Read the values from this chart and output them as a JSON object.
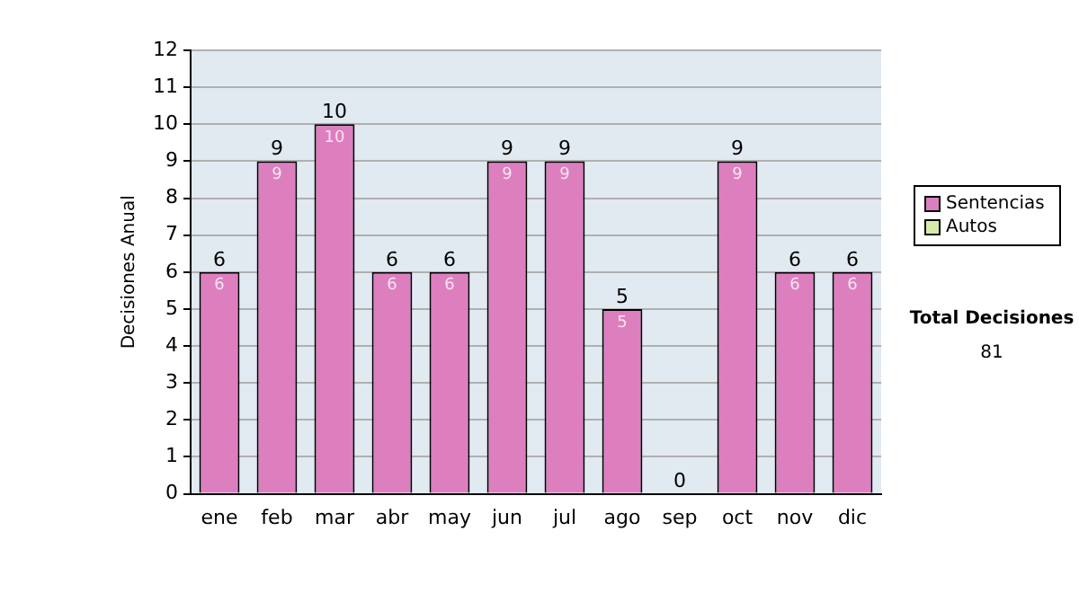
{
  "chart_data": {
    "type": "bar",
    "stacked": true,
    "ylabel": "Decisiones Anual",
    "categories": [
      "ene",
      "feb",
      "mar",
      "abr",
      "may",
      "jun",
      "jul",
      "ago",
      "sep",
      "oct",
      "nov",
      "dic"
    ],
    "series": [
      {
        "name": "Sentencias",
        "color": "#dd7fbf",
        "values": [
          6,
          9,
          10,
          6,
          6,
          9,
          9,
          5,
          0,
          9,
          6,
          6
        ],
        "value_labels": [
          "6",
          "9",
          "10",
          "6",
          "6",
          "9",
          "9",
          "5",
          null,
          "9",
          "6",
          "6"
        ]
      },
      {
        "name": "Autos",
        "color": "#d7eba6",
        "values": [
          0,
          0,
          0,
          0,
          0,
          0,
          0,
          0,
          0,
          0,
          0,
          0
        ]
      }
    ],
    "totals": [
      "6",
      "9",
      "10",
      "6",
      "6",
      "9",
      "9",
      "5",
      "0",
      "9",
      "6",
      "6"
    ],
    "ylim": [
      0,
      12
    ],
    "yticks": [
      0,
      1,
      2,
      3,
      4,
      5,
      6,
      7,
      8,
      9,
      10,
      11,
      12
    ],
    "grid": "y",
    "legend": "right",
    "annotations": [
      "Total Decisiones",
      "81"
    ]
  }
}
